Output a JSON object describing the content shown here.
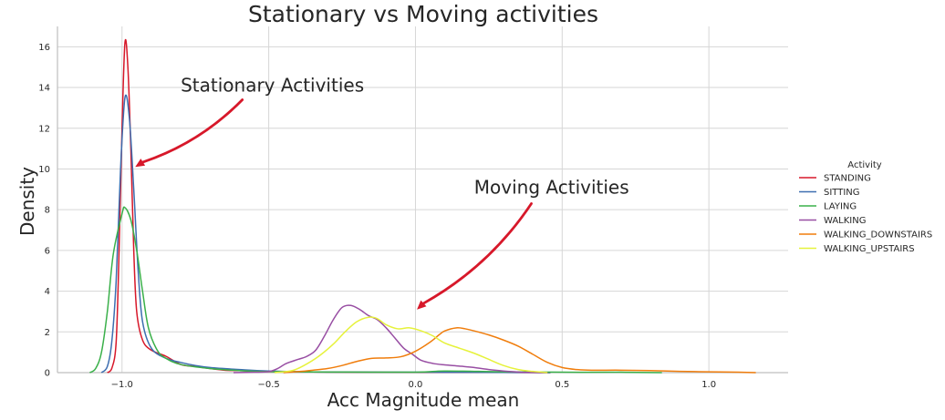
{
  "chart_data": {
    "type": "line",
    "title": "Stationary vs Moving activities",
    "xlabel": "Acc Magnitude mean",
    "ylabel": "Density",
    "xlim": [
      -1.22,
      1.27
    ],
    "ylim": [
      0,
      17
    ],
    "xticks": [
      -1.0,
      -0.5,
      0.0,
      0.5,
      1.0
    ],
    "xtick_labels": [
      "−1.0",
      "−0.5",
      "0.0",
      "0.5",
      "1.0"
    ],
    "yticks": [
      0,
      2,
      4,
      6,
      8,
      10,
      12,
      14,
      16
    ],
    "grid": true,
    "legend_position": "right",
    "legend_title": "Activity",
    "series": [
      {
        "name": "STANDING",
        "color": "#d7182a",
        "points": [
          [
            -1.05,
            0
          ],
          [
            -1.035,
            0.2
          ],
          [
            -1.02,
            1.5
          ],
          [
            -1.01,
            6
          ],
          [
            -1.0,
            12
          ],
          [
            -0.99,
            16.2
          ],
          [
            -0.98,
            15
          ],
          [
            -0.97,
            11
          ],
          [
            -0.96,
            6
          ],
          [
            -0.95,
            3
          ],
          [
            -0.93,
            1.6
          ],
          [
            -0.9,
            1.1
          ],
          [
            -0.85,
            0.8
          ],
          [
            -0.8,
            0.4
          ],
          [
            -0.75,
            0.3
          ],
          [
            -0.7,
            0.2
          ],
          [
            -0.65,
            0.12
          ],
          [
            -0.6,
            0.1
          ],
          [
            -0.5,
            0.05
          ],
          [
            -0.3,
            0.03
          ],
          [
            0.0,
            0.01
          ],
          [
            0.3,
            0.01
          ],
          [
            0.46,
            0
          ]
        ]
      },
      {
        "name": "SITTING",
        "color": "#3d6eb0",
        "points": [
          [
            -1.07,
            0
          ],
          [
            -1.05,
            0.3
          ],
          [
            -1.035,
            1.5
          ],
          [
            -1.02,
            4.5
          ],
          [
            -1.005,
            10
          ],
          [
            -0.99,
            13.5
          ],
          [
            -0.975,
            12.5
          ],
          [
            -0.96,
            9
          ],
          [
            -0.945,
            5
          ],
          [
            -0.93,
            2.5
          ],
          [
            -0.9,
            1.2
          ],
          [
            -0.85,
            0.7
          ],
          [
            -0.8,
            0.5
          ],
          [
            -0.75,
            0.35
          ],
          [
            -0.7,
            0.25
          ],
          [
            -0.6,
            0.15
          ],
          [
            -0.5,
            0.08
          ],
          [
            -0.3,
            0.03
          ],
          [
            0.0,
            0.02
          ],
          [
            0.3,
            0.01
          ],
          [
            0.46,
            0
          ]
        ]
      },
      {
        "name": "LAYING",
        "color": "#3ab04a",
        "points": [
          [
            -1.11,
            0
          ],
          [
            -1.09,
            0.2
          ],
          [
            -1.07,
            1
          ],
          [
            -1.05,
            3
          ],
          [
            -1.03,
            5.8
          ],
          [
            -1.0,
            7.8
          ],
          [
            -0.99,
            8.1
          ],
          [
            -0.97,
            7.5
          ],
          [
            -0.95,
            6
          ],
          [
            -0.93,
            4
          ],
          [
            -0.91,
            2.2
          ],
          [
            -0.88,
            1.1
          ],
          [
            -0.85,
            0.7
          ],
          [
            -0.8,
            0.4
          ],
          [
            -0.7,
            0.2
          ],
          [
            -0.6,
            0.1
          ],
          [
            -0.5,
            0.05
          ],
          [
            -0.3,
            0.03
          ],
          [
            0.0,
            0.02
          ],
          [
            0.1,
            0.08
          ],
          [
            0.3,
            0.04
          ],
          [
            0.5,
            0.02
          ],
          [
            0.7,
            0.02
          ],
          [
            0.84,
            0
          ]
        ]
      },
      {
        "name": "WALKING",
        "color": "#984ea3",
        "points": [
          [
            -0.62,
            0
          ],
          [
            -0.55,
            0.02
          ],
          [
            -0.5,
            0.05
          ],
          [
            -0.47,
            0.2
          ],
          [
            -0.44,
            0.45
          ],
          [
            -0.4,
            0.65
          ],
          [
            -0.37,
            0.8
          ],
          [
            -0.34,
            1.1
          ],
          [
            -0.31,
            1.8
          ],
          [
            -0.28,
            2.6
          ],
          [
            -0.25,
            3.2
          ],
          [
            -0.22,
            3.3
          ],
          [
            -0.19,
            3.1
          ],
          [
            -0.16,
            2.8
          ],
          [
            -0.13,
            2.6
          ],
          [
            -0.1,
            2.2
          ],
          [
            -0.07,
            1.7
          ],
          [
            -0.04,
            1.2
          ],
          [
            -0.01,
            0.9
          ],
          [
            0.02,
            0.6
          ],
          [
            0.06,
            0.45
          ],
          [
            0.1,
            0.38
          ],
          [
            0.15,
            0.32
          ],
          [
            0.2,
            0.25
          ],
          [
            0.25,
            0.15
          ],
          [
            0.3,
            0.08
          ],
          [
            0.35,
            0.03
          ],
          [
            0.4,
            0.01
          ],
          [
            0.45,
            0
          ]
        ]
      },
      {
        "name": "WALKING_DOWNSTAIRS",
        "color": "#f07d0c",
        "points": [
          [
            -0.45,
            0
          ],
          [
            -0.4,
            0.05
          ],
          [
            -0.35,
            0.12
          ],
          [
            -0.3,
            0.2
          ],
          [
            -0.25,
            0.35
          ],
          [
            -0.2,
            0.55
          ],
          [
            -0.15,
            0.7
          ],
          [
            -0.1,
            0.72
          ],
          [
            -0.05,
            0.78
          ],
          [
            0.0,
            1.05
          ],
          [
            0.05,
            1.5
          ],
          [
            0.08,
            1.85
          ],
          [
            0.1,
            2.05
          ],
          [
            0.14,
            2.2
          ],
          [
            0.17,
            2.15
          ],
          [
            0.2,
            2.05
          ],
          [
            0.25,
            1.85
          ],
          [
            0.3,
            1.6
          ],
          [
            0.35,
            1.3
          ],
          [
            0.4,
            0.9
          ],
          [
            0.45,
            0.5
          ],
          [
            0.5,
            0.25
          ],
          [
            0.55,
            0.15
          ],
          [
            0.6,
            0.12
          ],
          [
            0.7,
            0.12
          ],
          [
            0.8,
            0.1
          ],
          [
            0.9,
            0.06
          ],
          [
            1.0,
            0.04
          ],
          [
            1.1,
            0.02
          ],
          [
            1.16,
            0
          ]
        ]
      },
      {
        "name": "WALKING_UPSTAIRS",
        "color": "#e6f23b",
        "points": [
          [
            -0.48,
            0
          ],
          [
            -0.42,
            0.1
          ],
          [
            -0.38,
            0.35
          ],
          [
            -0.33,
            0.8
          ],
          [
            -0.28,
            1.4
          ],
          [
            -0.24,
            2.0
          ],
          [
            -0.2,
            2.5
          ],
          [
            -0.16,
            2.72
          ],
          [
            -0.13,
            2.65
          ],
          [
            -0.1,
            2.35
          ],
          [
            -0.06,
            2.15
          ],
          [
            -0.02,
            2.2
          ],
          [
            0.02,
            2.05
          ],
          [
            0.06,
            1.8
          ],
          [
            0.1,
            1.45
          ],
          [
            0.15,
            1.2
          ],
          [
            0.2,
            0.95
          ],
          [
            0.25,
            0.65
          ],
          [
            0.3,
            0.35
          ],
          [
            0.35,
            0.15
          ],
          [
            0.4,
            0.06
          ],
          [
            0.45,
            0
          ]
        ]
      }
    ],
    "annotations": [
      {
        "text": "Stationary Activities",
        "text_x": -0.8,
        "text_y": 13.8,
        "arrow_from": [
          -0.59,
          13.4
        ],
        "arrow_to": [
          -0.955,
          10.1
        ],
        "color": "#d7182a"
      },
      {
        "text": "Moving Activities",
        "text_x": 0.2,
        "text_y": 8.8,
        "arrow_from": [
          0.395,
          8.3
        ],
        "arrow_to": [
          0.005,
          3.1
        ],
        "color": "#d7182a"
      }
    ]
  }
}
